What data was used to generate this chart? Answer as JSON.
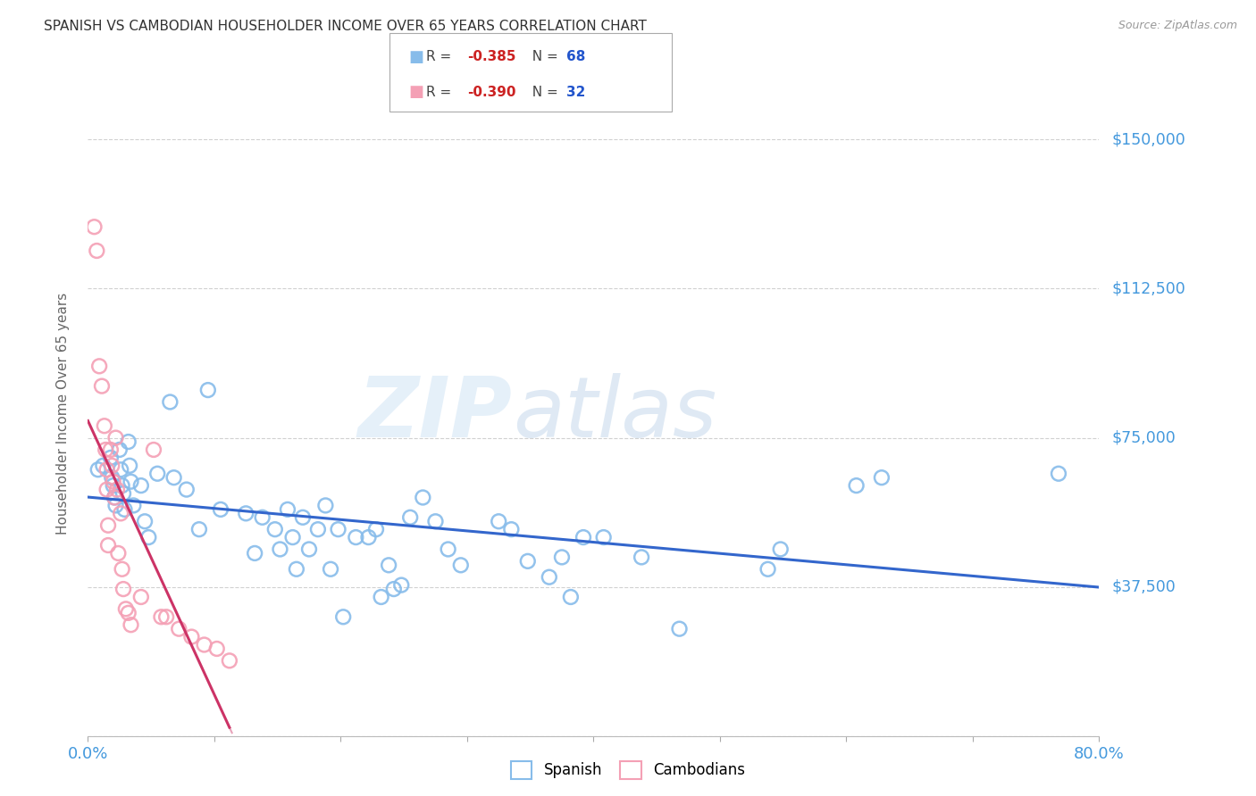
{
  "title": "SPANISH VS CAMBODIAN HOUSEHOLDER INCOME OVER 65 YEARS CORRELATION CHART",
  "source": "Source: ZipAtlas.com",
  "ylabel": "Householder Income Over 65 years",
  "xlim": [
    0.0,
    0.8
  ],
  "ylim": [
    0,
    162000
  ],
  "yticks": [
    0,
    37500,
    75000,
    112500,
    150000
  ],
  "ytick_labels": [
    "",
    "$37,500",
    "$75,000",
    "$112,500",
    "$150,000"
  ],
  "xticks": [
    0.0,
    0.1,
    0.2,
    0.3,
    0.4,
    0.5,
    0.6,
    0.7,
    0.8
  ],
  "watermark_zip": "ZIP",
  "watermark_atlas": "atlas",
  "legend_spanish_R": "-0.385",
  "legend_spanish_N": "68",
  "legend_cambodian_R": "-0.390",
  "legend_cambodian_N": "32",
  "spanish_color": "#87bcea",
  "cambodian_color": "#f4a0b5",
  "spanish_line_color": "#3366cc",
  "cambodian_line_color": "#cc3366",
  "title_color": "#333333",
  "axis_label_color": "#4499dd",
  "grid_color": "#cccccc",
  "spanish_x": [
    0.008,
    0.012,
    0.018,
    0.019,
    0.02,
    0.021,
    0.022,
    0.025,
    0.026,
    0.027,
    0.028,
    0.029,
    0.032,
    0.033,
    0.034,
    0.036,
    0.042,
    0.045,
    0.048,
    0.055,
    0.065,
    0.068,
    0.078,
    0.088,
    0.095,
    0.105,
    0.125,
    0.132,
    0.138,
    0.148,
    0.152,
    0.158,
    0.162,
    0.165,
    0.17,
    0.175,
    0.182,
    0.188,
    0.192,
    0.198,
    0.202,
    0.212,
    0.222,
    0.228,
    0.232,
    0.238,
    0.242,
    0.248,
    0.255,
    0.265,
    0.275,
    0.285,
    0.295,
    0.325,
    0.335,
    0.348,
    0.365,
    0.375,
    0.382,
    0.392,
    0.408,
    0.438,
    0.468,
    0.538,
    0.548,
    0.608,
    0.628,
    0.768
  ],
  "spanish_y": [
    67000,
    68000,
    70000,
    65000,
    63000,
    60000,
    58000,
    72000,
    67000,
    63000,
    61000,
    57000,
    74000,
    68000,
    64000,
    58000,
    63000,
    54000,
    50000,
    66000,
    84000,
    65000,
    62000,
    52000,
    87000,
    57000,
    56000,
    46000,
    55000,
    52000,
    47000,
    57000,
    50000,
    42000,
    55000,
    47000,
    52000,
    58000,
    42000,
    52000,
    30000,
    50000,
    50000,
    52000,
    35000,
    43000,
    37000,
    38000,
    55000,
    60000,
    54000,
    47000,
    43000,
    54000,
    52000,
    44000,
    40000,
    45000,
    35000,
    50000,
    50000,
    45000,
    27000,
    42000,
    47000,
    63000,
    65000,
    66000
  ],
  "cambodian_x": [
    0.005,
    0.007,
    0.009,
    0.011,
    0.013,
    0.014,
    0.015,
    0.015,
    0.016,
    0.016,
    0.018,
    0.019,
    0.02,
    0.021,
    0.022,
    0.023,
    0.024,
    0.026,
    0.027,
    0.028,
    0.03,
    0.032,
    0.034,
    0.042,
    0.052,
    0.058,
    0.062,
    0.072,
    0.082,
    0.092,
    0.102,
    0.112
  ],
  "cambodian_y": [
    128000,
    122000,
    93000,
    88000,
    78000,
    72000,
    67000,
    62000,
    53000,
    48000,
    72000,
    68000,
    64000,
    60000,
    75000,
    62000,
    46000,
    56000,
    42000,
    37000,
    32000,
    31000,
    28000,
    35000,
    72000,
    30000,
    30000,
    27000,
    25000,
    23000,
    22000,
    19000
  ]
}
